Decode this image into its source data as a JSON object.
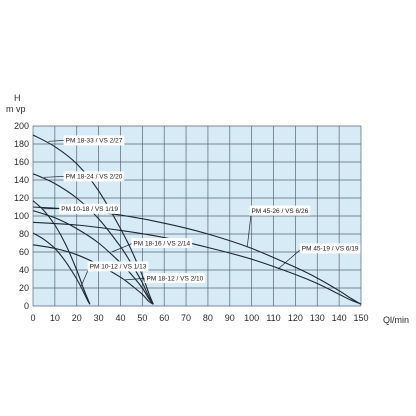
{
  "colors": {
    "background": "#ffffff",
    "plot_area": "#d6ebf5",
    "grid": "#5a6470",
    "curve": "#1e2630",
    "label_box": "#ffffff",
    "text": "#2b2b2b"
  },
  "chart_data": {
    "type": "line",
    "title": "",
    "ylabel_line1": "H",
    "ylabel_line2": "m vp",
    "xlabel": "Ql/min",
    "xlim": [
      0,
      150
    ],
    "ylim": [
      0,
      200
    ],
    "x_ticks": [
      0,
      10,
      20,
      30,
      40,
      50,
      60,
      70,
      80,
      90,
      100,
      110,
      120,
      130,
      140,
      150
    ],
    "y_ticks": [
      0,
      20,
      40,
      60,
      80,
      100,
      120,
      140,
      160,
      180,
      200
    ],
    "grid": true,
    "legend": "none",
    "series": [
      {
        "name": "PM 18-33 / VS 2/27",
        "x": [
          0,
          10,
          20,
          30,
          40,
          45,
          50,
          53,
          55
        ],
        "y": [
          190,
          177,
          158,
          128,
          86,
          62,
          34,
          14,
          2
        ]
      },
      {
        "name": "PM 18-24 / VS 2/20",
        "x": [
          0,
          10,
          20,
          30,
          40,
          45,
          50,
          53,
          55
        ],
        "y": [
          147,
          136,
          120,
          97,
          66,
          47,
          26,
          10,
          2
        ]
      },
      {
        "name": "PM 10-18 / VS 1/19",
        "x": [
          0,
          5,
          10,
          15,
          20,
          23,
          25,
          26
        ],
        "y": [
          117,
          106,
          90,
          68,
          40,
          20,
          8,
          2
        ]
      },
      {
        "name": "PM 18-16 / VS 2/14",
        "x": [
          0,
          10,
          20,
          30,
          40,
          45,
          50,
          53,
          55
        ],
        "y": [
          106,
          98,
          86,
          70,
          48,
          35,
          20,
          8,
          2
        ]
      },
      {
        "name": "PM 10-12 / VS 1/13",
        "x": [
          0,
          5,
          10,
          15,
          20,
          23,
          25,
          26
        ],
        "y": [
          81,
          74,
          64,
          49,
          30,
          16,
          6,
          2
        ]
      },
      {
        "name": "PM 18-12 / VS 2/10",
        "x": [
          0,
          10,
          20,
          30,
          40,
          45,
          50,
          53,
          55
        ],
        "y": [
          68,
          64,
          57,
          46,
          32,
          23,
          13,
          5,
          2
        ]
      },
      {
        "name": "PM 45-26 / VS 6/26",
        "x": [
          0,
          20,
          40,
          60,
          80,
          100,
          120,
          130,
          140,
          145,
          150
        ],
        "y": [
          110,
          107,
          101,
          92,
          80,
          64,
          43,
          31,
          17,
          9,
          2
        ]
      },
      {
        "name": "PM 45-19 / VS 6/19",
        "x": [
          0,
          20,
          40,
          60,
          80,
          100,
          120,
          130,
          140,
          145,
          150
        ],
        "y": [
          93,
          90,
          84,
          76,
          65,
          52,
          35,
          25,
          13,
          7,
          2
        ]
      }
    ]
  },
  "curve_labels": [
    {
      "text": "PM 18-33 / VS 2/27",
      "series": 0,
      "anchor": [
        7,
        183
      ],
      "box": [
        14,
        184
      ]
    },
    {
      "text": "PM 18-24 / VS 2/20",
      "series": 1,
      "anchor": [
        5,
        143
      ],
      "box": [
        14,
        144
      ]
    },
    {
      "text": "PM 10-18 / VS 1/19",
      "series": 2,
      "anchor": [
        4,
        108
      ],
      "box": [
        12,
        108
      ]
    },
    {
      "text": "PM 18-16 / VS 2/14",
      "series": 3,
      "anchor": [
        36,
        60
      ],
      "box": [
        45,
        70
      ]
    },
    {
      "text": "PM 10-12 / VS 1/13",
      "series": 4,
      "anchor": [
        22,
        22
      ],
      "box": [
        25,
        44
      ]
    },
    {
      "text": "PM 18-12 / VS 2/10",
      "series": 5,
      "anchor": [
        42,
        29
      ],
      "box": [
        51,
        31
      ]
    },
    {
      "text": "PM 45-26 / VS 6/26",
      "series": 6,
      "anchor": [
        98,
        66
      ],
      "box": [
        99,
        106
      ]
    },
    {
      "text": "PM 45-19 / VS 6/19",
      "series": 7,
      "anchor": [
        112,
        41
      ],
      "box": [
        122,
        64
      ]
    }
  ]
}
